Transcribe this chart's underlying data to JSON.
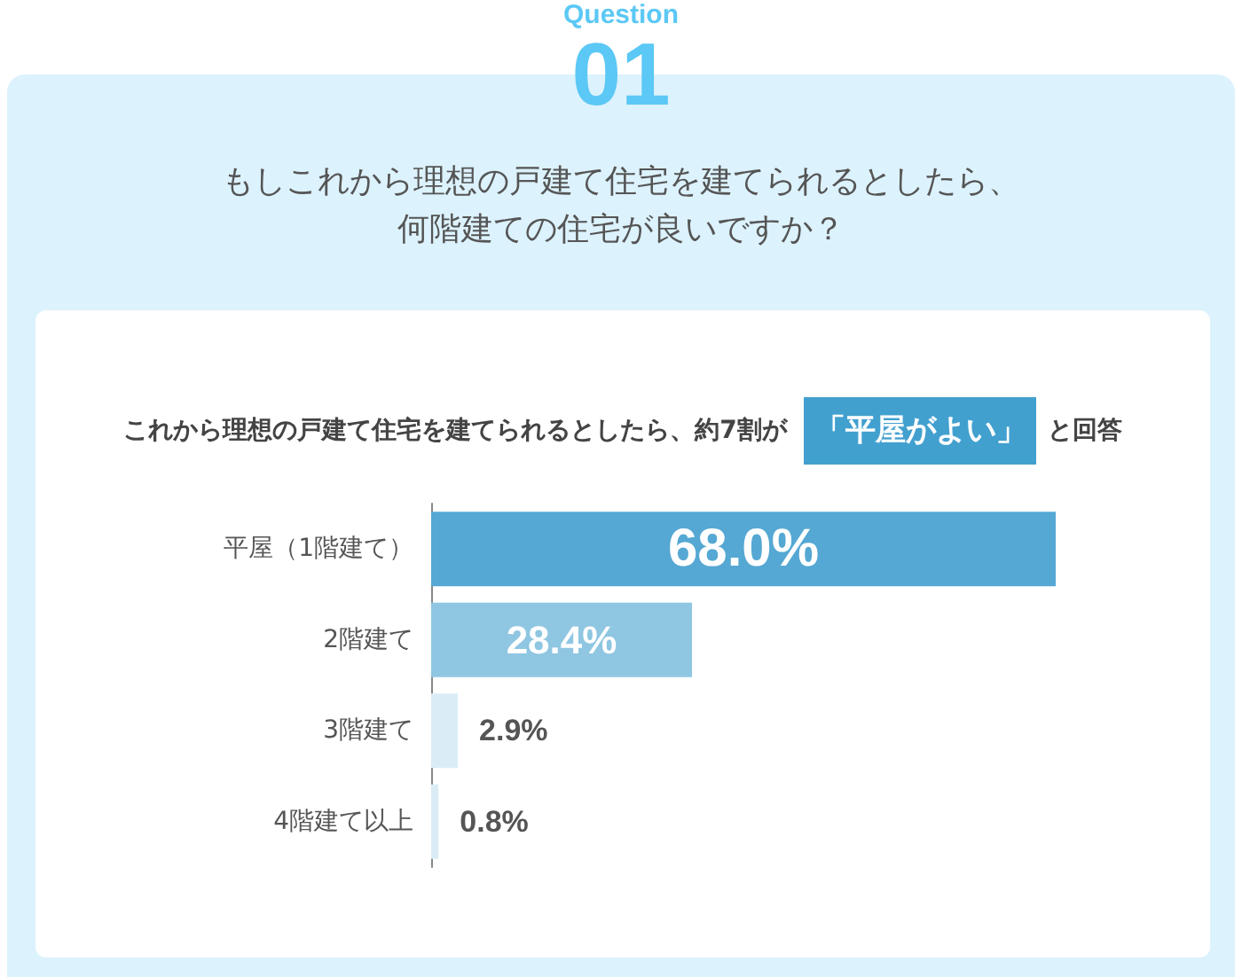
{
  "chart_data": {
    "type": "bar",
    "orientation": "horizontal",
    "title": "もしこれから理想の戸建て住宅を建てられるとしたら、何階建ての住宅が良いですか？",
    "subtitle": "これから理想の戸建て住宅を建てられるとしたら、約7割が",
    "annotations": [
      "Question",
      "01",
      "「平屋がよい」",
      "と回答"
    ],
    "categories": [
      "平屋（1階建て）",
      "2階建て",
      "3階建て",
      "4階建て以上"
    ],
    "values": [
      68.0,
      28.4,
      2.9,
      0.8
    ],
    "colors": [
      "#55a8d3",
      "#8fc6e2",
      "#daedf6",
      "#daedf6"
    ],
    "value_labels": [
      "68.0%",
      "28.4%",
      "2.9%",
      "0.8%"
    ]
  }
}
